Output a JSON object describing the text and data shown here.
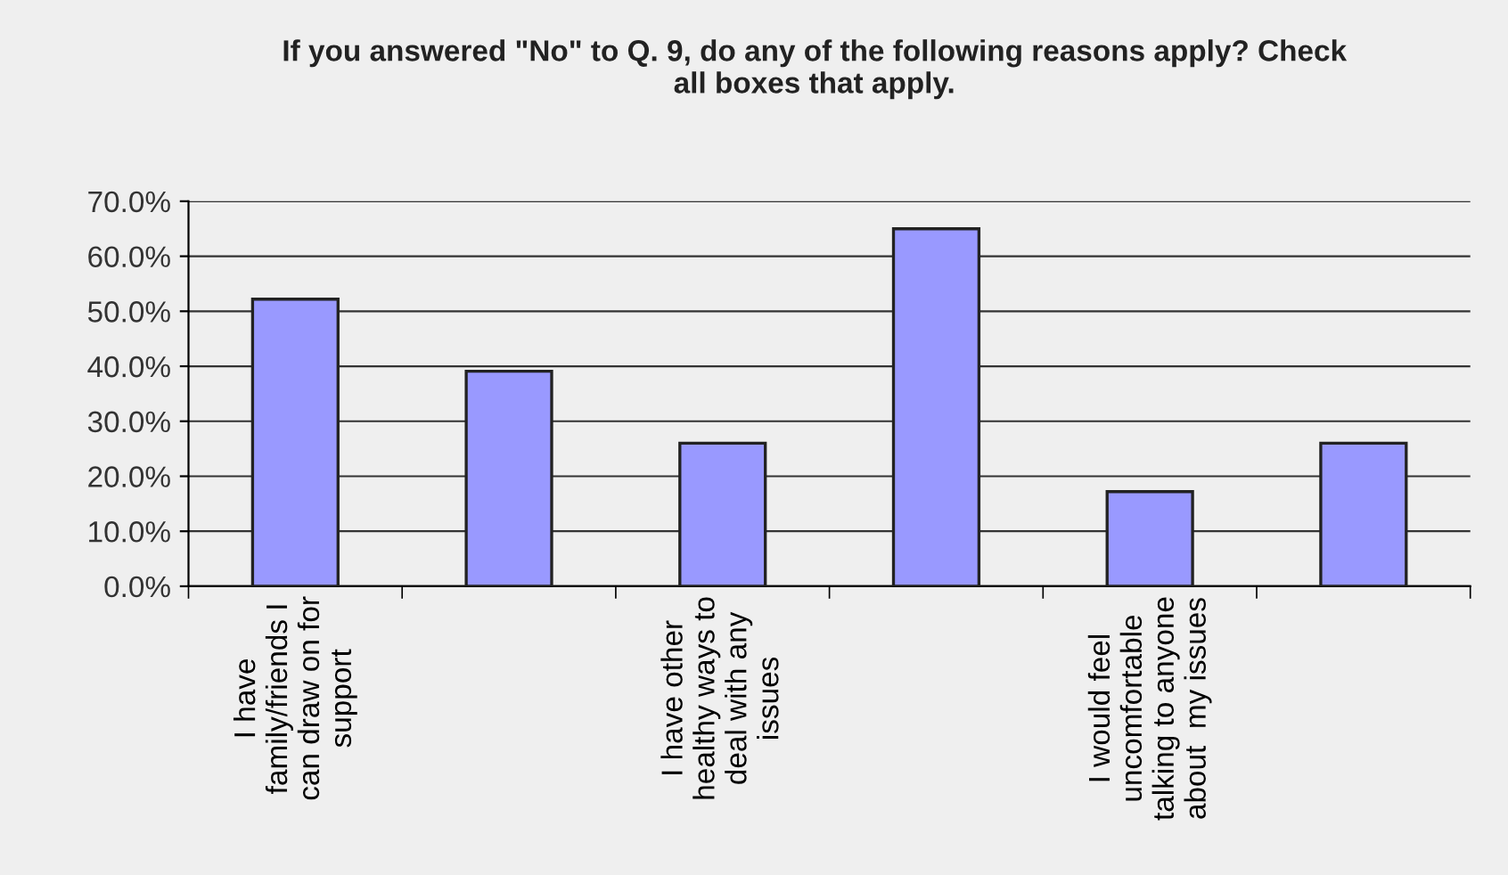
{
  "chart_data": {
    "type": "bar",
    "title": "If you answered \"No\" to Q. 9, do any of the following reasons apply? Check\nall boxes that apply.",
    "categories": [
      "I have\nfamily/friends I\ncan draw on for\nsupport",
      null,
      "I have other\nhealthy ways to\ndeal with any\nissues",
      null,
      "I would feel\nuncomfortable\ntalking to anyone\nabout  my issues",
      null
    ],
    "values": [
      52.2,
      39.1,
      26.0,
      65.0,
      17.2,
      26.0
    ],
    "color": "#9999ff",
    "ylim": [
      0,
      70
    ],
    "yticks": [
      {
        "value": 0,
        "label": "0.0%"
      },
      {
        "value": 10,
        "label": "10.0%"
      },
      {
        "value": 20,
        "label": "20.0%"
      },
      {
        "value": 30,
        "label": "30.0%"
      },
      {
        "value": 40,
        "label": "40.0%"
      },
      {
        "value": 50,
        "label": "50.0%"
      },
      {
        "value": 60,
        "label": "60.0%"
      },
      {
        "value": 70,
        "label": "70.0%"
      }
    ],
    "grid": "y"
  }
}
